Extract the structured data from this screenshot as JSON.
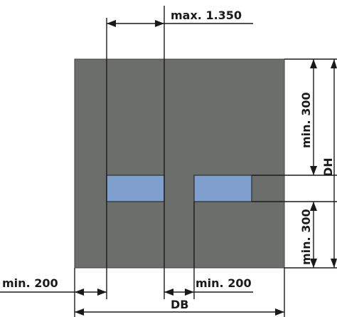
{
  "colors": {
    "wall": "#6b6e6a",
    "wall_edge": "#3c3e3b",
    "window": "#7f9fcf",
    "window_edge": "#2b2d2b",
    "line": "#1a1a1a"
  },
  "labels": {
    "max_spacing": "max. 1.350",
    "min_top": "min. 300",
    "dh": "DH",
    "min_bottom": "min. 300",
    "min_left": "min. 200",
    "min_gap": "min. 200",
    "db": "DB"
  }
}
